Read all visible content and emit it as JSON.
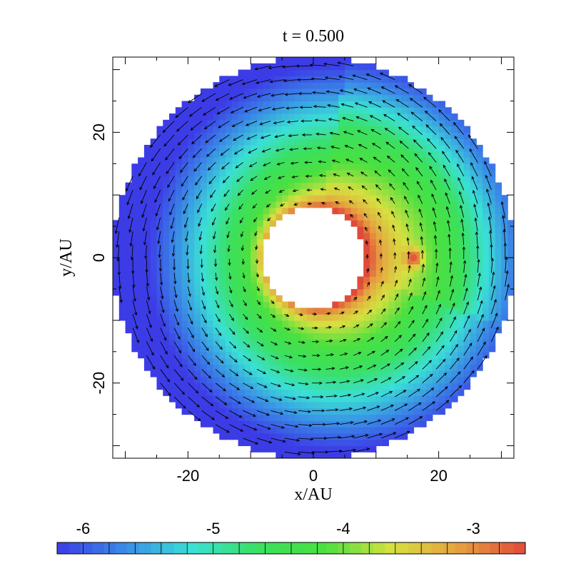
{
  "chart_data": {
    "type": "heatmap",
    "title": "t = 0.500",
    "xlabel": "x/AU",
    "ylabel": "y/AU",
    "xlim": [
      -32,
      32
    ],
    "ylim": [
      -32,
      32
    ],
    "x_ticks": [
      -20,
      0,
      20
    ],
    "y_ticks": [
      -20,
      0,
      20
    ],
    "x_tick_labels": [
      "-20",
      "0",
      "20"
    ],
    "y_tick_labels": [
      "-20",
      "0",
      "20"
    ],
    "grid": false,
    "disk": {
      "inner_radius": 8,
      "outer_radius": 32,
      "rotation": "counter-clockwise",
      "planet": {
        "x": 16,
        "y": 0,
        "value": -2.7
      }
    },
    "colorbar": {
      "orientation": "horizontal",
      "placement": "bottom",
      "range": [
        -6.2,
        -2.6
      ],
      "ticks": [
        -6,
        -5,
        -4,
        -3
      ],
      "tick_labels": [
        "-6",
        "-5",
        "-4",
        "-3"
      ],
      "colors": [
        "#3c3ce6",
        "#3a8ae6",
        "#3ae0d6",
        "#3ae060",
        "#4ae040",
        "#d6e040",
        "#e6a040",
        "#e04a3a"
      ]
    },
    "overlay": "velocity field arrows"
  }
}
